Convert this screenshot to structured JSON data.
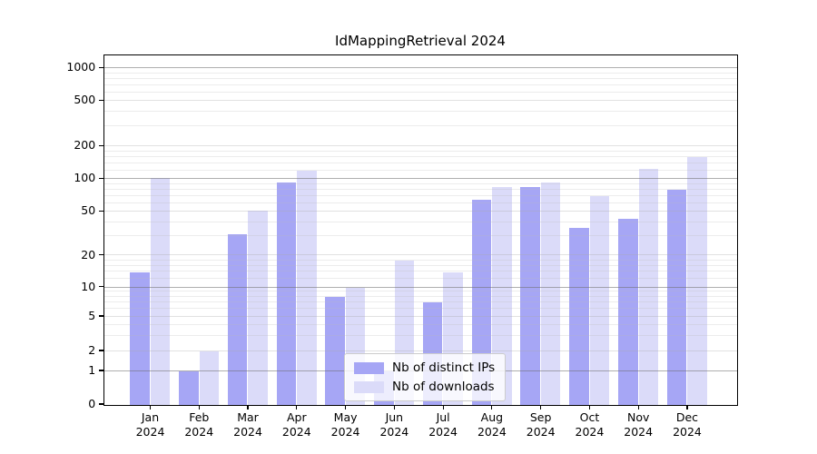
{
  "chart_data": {
    "type": "bar",
    "title": "IdMappingRetrieval 2024",
    "categories": [
      "Jan",
      "Feb",
      "Mar",
      "Apr",
      "May",
      "Jun",
      "Jul",
      "Aug",
      "Sep",
      "Oct",
      "Nov",
      "Dec"
    ],
    "year_label": "2024",
    "series": [
      {
        "name": "Nb of distinct IPs",
        "key": "distinct-ips",
        "color": "#a6a6f5",
        "values": [
          14,
          1,
          31,
          93,
          8,
          1,
          7,
          65,
          84,
          36,
          43,
          80
        ]
      },
      {
        "name": "Nb of downloads",
        "key": "downloads",
        "color": "#dbdbf9",
        "values": [
          102,
          2,
          51,
          120,
          10,
          18,
          14,
          85,
          93,
          70,
          125,
          160
        ]
      }
    ],
    "y_ticks": [
      0,
      1,
      2,
      5,
      10,
      20,
      50,
      100,
      200,
      500,
      1000
    ],
    "y_scale": "symlog",
    "ylim": [
      0,
      1400
    ],
    "xlabel": "",
    "ylabel": "",
    "grid": "horizontal",
    "legend_position": "lower-center"
  },
  "colors": {
    "spine": "#000000",
    "grid_major": "#6e6e6e",
    "grid_minor": "#bbbbbb",
    "legend_border": "#cccccc"
  }
}
